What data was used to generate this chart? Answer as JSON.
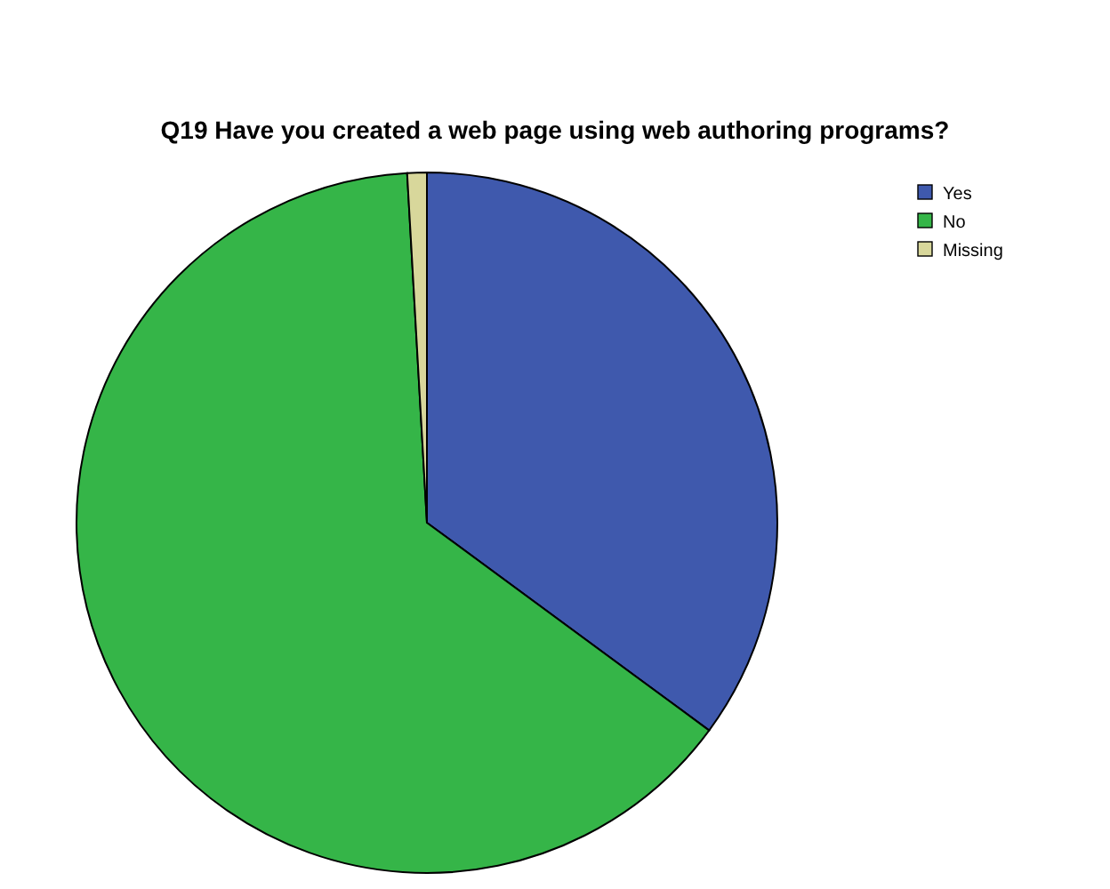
{
  "chart_data": {
    "type": "pie",
    "title": "Q19 Have you created a web page using web authoring programs?",
    "categories": [
      "Yes",
      "No",
      "Missing"
    ],
    "values": [
      35.1,
      64.0,
      0.9
    ],
    "colors": [
      "#3f59ad",
      "#35b548",
      "#d8d79b"
    ],
    "legend": "top right"
  }
}
